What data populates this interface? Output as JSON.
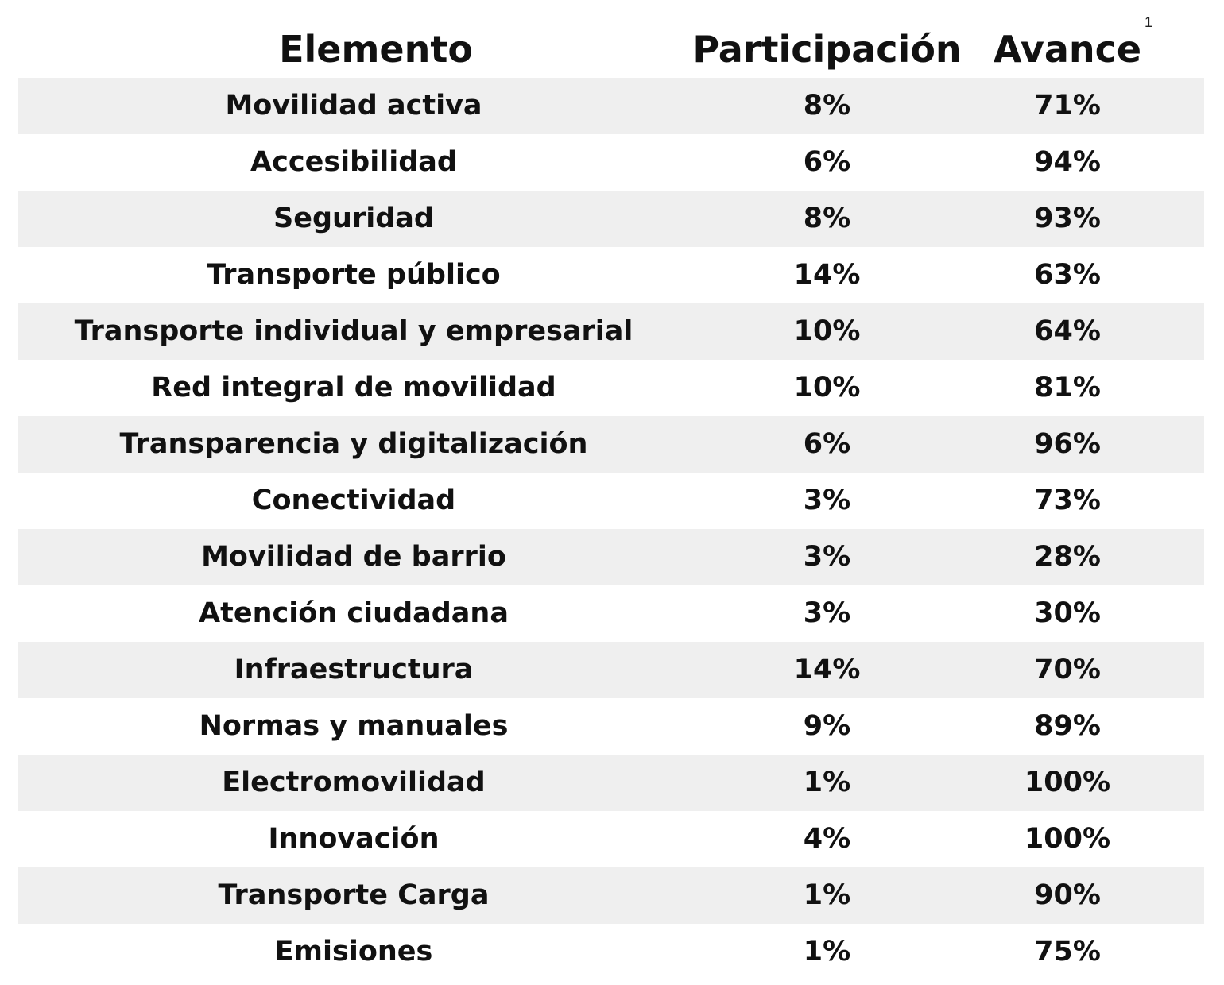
{
  "page": {
    "number": "1"
  },
  "chart_data": {
    "type": "table",
    "columns": [
      "Elemento",
      "Participación",
      "Avance"
    ],
    "rows": [
      [
        "Movilidad activa",
        "8%",
        "71%"
      ],
      [
        "Accesibilidad",
        "6%",
        "94%"
      ],
      [
        "Seguridad",
        "8%",
        "93%"
      ],
      [
        "Transporte público",
        "14%",
        "63%"
      ],
      [
        "Transporte individual y empresarial",
        "10%",
        "64%"
      ],
      [
        "Red integral de movilidad",
        "10%",
        "81%"
      ],
      [
        "Transparencia y digitalización",
        "6%",
        "96%"
      ],
      [
        "Conectividad",
        "3%",
        "73%"
      ],
      [
        "Movilidad de barrio",
        "3%",
        "28%"
      ],
      [
        "Atención ciudadana",
        "3%",
        "30%"
      ],
      [
        "Infraestructura",
        "14%",
        "70%"
      ],
      [
        "Normas y manuales",
        "9%",
        "89%"
      ],
      [
        "Electromovilidad",
        "1%",
        "100%"
      ],
      [
        "Innovación",
        "4%",
        "100%"
      ],
      [
        "Transporte Carga",
        "1%",
        "90%"
      ],
      [
        "Emisiones",
        "1%",
        "75%"
      ]
    ],
    "row_shading": "#efefef"
  }
}
